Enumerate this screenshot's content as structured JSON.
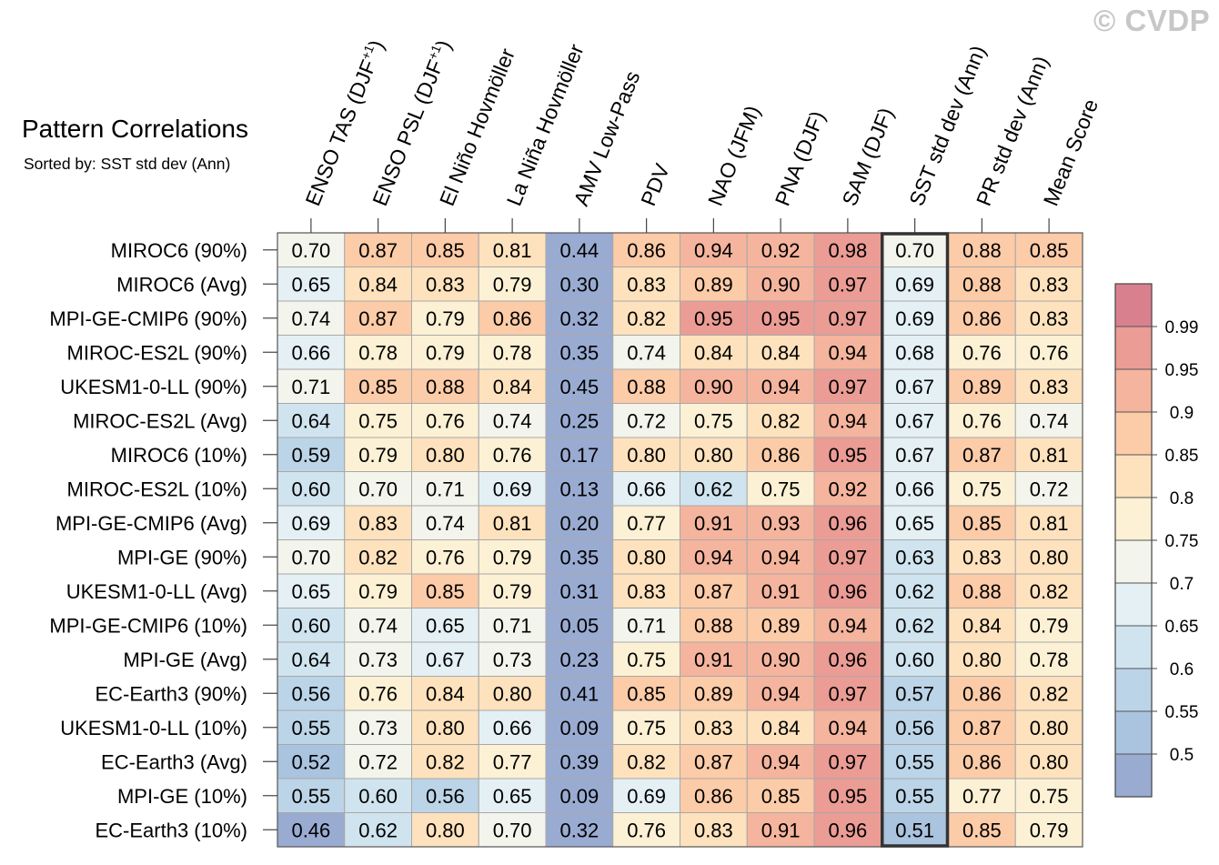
{
  "watermark": "© CVDP",
  "chart_data": {
    "type": "heatmap",
    "title": "Pattern Correlations",
    "subtitle": "Sorted by: SST std dev (Ann)",
    "columns": [
      {
        "label": "ENSO TAS (DJF",
        "sup": "+1",
        "tail": ")"
      },
      {
        "label": "ENSO PSL (DJF",
        "sup": "+1",
        "tail": ")"
      },
      {
        "label": "El Niño Hovmöller",
        "sup": "",
        "tail": ""
      },
      {
        "label": "La Niña Hovmöller",
        "sup": "",
        "tail": ""
      },
      {
        "label": "AMV Low-Pass",
        "sup": "",
        "tail": ""
      },
      {
        "label": "PDV",
        "sup": "",
        "tail": ""
      },
      {
        "label": "NAO (JFM)",
        "sup": "",
        "tail": ""
      },
      {
        "label": "PNA (DJF)",
        "sup": "",
        "tail": ""
      },
      {
        "label": "SAM (DJF)",
        "sup": "",
        "tail": ""
      },
      {
        "label": "SST std dev (Ann)",
        "sup": "",
        "tail": ""
      },
      {
        "label": "PR std dev (Ann)",
        "sup": "",
        "tail": ""
      },
      {
        "label": "Mean Score",
        "sup": "",
        "tail": ""
      }
    ],
    "highlighted_column": 9,
    "rows": [
      "MIROC6 (90%)",
      "MIROC6 (Avg)",
      "MPI-GE-CMIP6 (90%)",
      "MIROC-ES2L (90%)",
      "UKESM1-0-LL (90%)",
      "MIROC-ES2L (Avg)",
      "MIROC6 (10%)",
      "MIROC-ES2L (10%)",
      "MPI-GE-CMIP6 (Avg)",
      "MPI-GE (90%)",
      "UKESM1-0-LL (Avg)",
      "MPI-GE-CMIP6 (10%)",
      "MPI-GE (Avg)",
      "EC-Earth3 (90%)",
      "UKESM1-0-LL (10%)",
      "EC-Earth3 (Avg)",
      "MPI-GE (10%)",
      "EC-Earth3 (10%)"
    ],
    "values": [
      [
        0.7,
        0.87,
        0.85,
        0.81,
        0.44,
        0.86,
        0.94,
        0.92,
        0.98,
        0.7,
        0.88,
        0.85
      ],
      [
        0.65,
        0.84,
        0.83,
        0.79,
        0.3,
        0.83,
        0.89,
        0.9,
        0.97,
        0.69,
        0.88,
        0.83
      ],
      [
        0.74,
        0.87,
        0.79,
        0.86,
        0.32,
        0.82,
        0.95,
        0.95,
        0.97,
        0.69,
        0.86,
        0.83
      ],
      [
        0.66,
        0.78,
        0.79,
        0.78,
        0.35,
        0.74,
        0.84,
        0.84,
        0.94,
        0.68,
        0.76,
        0.76
      ],
      [
        0.71,
        0.85,
        0.88,
        0.84,
        0.45,
        0.88,
        0.9,
        0.94,
        0.97,
        0.67,
        0.89,
        0.83
      ],
      [
        0.64,
        0.75,
        0.76,
        0.74,
        0.25,
        0.72,
        0.75,
        0.82,
        0.94,
        0.67,
        0.76,
        0.74
      ],
      [
        0.59,
        0.79,
        0.8,
        0.76,
        0.17,
        0.8,
        0.8,
        0.86,
        0.95,
        0.67,
        0.87,
        0.81
      ],
      [
        0.6,
        0.7,
        0.71,
        0.69,
        0.13,
        0.66,
        0.62,
        0.75,
        0.92,
        0.66,
        0.75,
        0.72
      ],
      [
        0.69,
        0.83,
        0.74,
        0.81,
        0.2,
        0.77,
        0.91,
        0.93,
        0.96,
        0.65,
        0.85,
        0.81
      ],
      [
        0.7,
        0.82,
        0.76,
        0.79,
        0.35,
        0.8,
        0.94,
        0.94,
        0.97,
        0.63,
        0.83,
        0.8
      ],
      [
        0.65,
        0.79,
        0.85,
        0.79,
        0.31,
        0.83,
        0.87,
        0.91,
        0.96,
        0.62,
        0.88,
        0.82
      ],
      [
        0.6,
        0.74,
        0.65,
        0.71,
        0.05,
        0.71,
        0.88,
        0.89,
        0.94,
        0.62,
        0.84,
        0.79
      ],
      [
        0.64,
        0.73,
        0.67,
        0.73,
        0.23,
        0.75,
        0.91,
        0.9,
        0.96,
        0.6,
        0.8,
        0.78
      ],
      [
        0.56,
        0.76,
        0.84,
        0.8,
        0.41,
        0.85,
        0.89,
        0.94,
        0.97,
        0.57,
        0.86,
        0.82
      ],
      [
        0.55,
        0.73,
        0.8,
        0.66,
        0.09,
        0.75,
        0.83,
        0.84,
        0.94,
        0.56,
        0.87,
        0.8
      ],
      [
        0.52,
        0.72,
        0.82,
        0.77,
        0.39,
        0.82,
        0.87,
        0.94,
        0.97,
        0.55,
        0.86,
        0.8
      ],
      [
        0.55,
        0.6,
        0.56,
        0.65,
        0.09,
        0.69,
        0.86,
        0.85,
        0.95,
        0.55,
        0.77,
        0.75
      ],
      [
        0.46,
        0.62,
        0.8,
        0.7,
        0.32,
        0.76,
        0.83,
        0.91,
        0.96,
        0.51,
        0.85,
        0.79
      ]
    ],
    "colorbar": {
      "levels": [
        0.5,
        0.55,
        0.6,
        0.65,
        0.7,
        0.75,
        0.8,
        0.85,
        0.9,
        0.95,
        0.99
      ],
      "tick_labels": [
        "0.5",
        "0.55",
        "0.6",
        "0.65",
        "0.7",
        "0.75",
        "0.8",
        "0.85",
        "0.9",
        "0.95",
        "0.99"
      ],
      "colors": [
        "#9aabd2",
        "#aac3df",
        "#bcd4e7",
        "#d0e4ef",
        "#e4f0f4",
        "#f3f4ec",
        "#fcf1d4",
        "#fde2bd",
        "#fccba8",
        "#f5b49d",
        "#eb9c95",
        "#d9808f"
      ]
    }
  }
}
